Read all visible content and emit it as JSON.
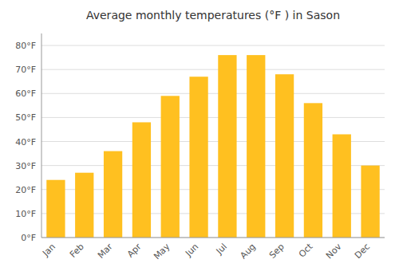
{
  "chart_data": {
    "type": "bar",
    "title": "Average monthly temperatures (°F ) in Sason",
    "categories": [
      "Jan",
      "Feb",
      "Mar",
      "Apr",
      "May",
      "Jun",
      "Jul",
      "Aug",
      "Sep",
      "Oct",
      "Nov",
      "Dec"
    ],
    "values": [
      24,
      27,
      36,
      48,
      59,
      67,
      76,
      76,
      68,
      56,
      43,
      30
    ],
    "color": "#FFC020",
    "ylim": [
      0,
      85
    ],
    "yticks": [
      {
        "value": 0,
        "label": "0°F"
      },
      {
        "value": 10,
        "label": "10°F"
      },
      {
        "value": 20,
        "label": "20°F"
      },
      {
        "value": 30,
        "label": "30°F"
      },
      {
        "value": 40,
        "label": "40°F"
      },
      {
        "value": 50,
        "label": "50°F"
      },
      {
        "value": 60,
        "label": "60°F"
      },
      {
        "value": 70,
        "label": "70°F"
      },
      {
        "value": 80,
        "label": "80°F"
      }
    ],
    "grid": true
  }
}
